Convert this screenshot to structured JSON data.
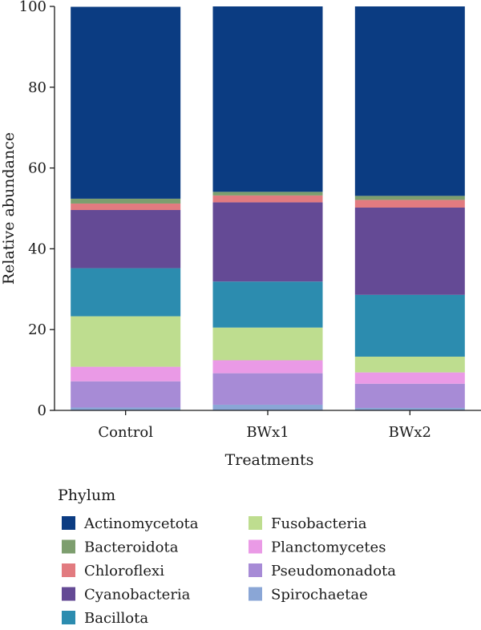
{
  "chart_data": {
    "type": "bar",
    "stacked": true,
    "title": "",
    "xlabel": "Treatments",
    "ylabel": "Relative abundance",
    "ylim": [
      0,
      100
    ],
    "yticks": [
      0,
      20,
      40,
      60,
      80,
      100
    ],
    "grid": false,
    "legend_position": "bottom",
    "legend_title": "Phylum",
    "categories": [
      "Control",
      "BWx1",
      "BWx2"
    ],
    "series": [
      {
        "name": "Spirochaetae",
        "color": "#8aa6d6",
        "values": [
          0.7,
          1.4,
          0.6
        ]
      },
      {
        "name": "Pseudomonadota",
        "color": "#a78bd6",
        "values": [
          6.5,
          7.8,
          6.0
        ]
      },
      {
        "name": "Planctomycetes",
        "color": "#ea9ae6",
        "values": [
          3.6,
          3.2,
          2.8
        ]
      },
      {
        "name": "Fusobacteria",
        "color": "#bedd8f",
        "values": [
          12.5,
          8.1,
          3.9
        ]
      },
      {
        "name": "Bacillota",
        "color": "#2c8caf",
        "values": [
          11.9,
          11.4,
          15.3
        ]
      },
      {
        "name": "Cyanobacteria",
        "color": "#644a95",
        "values": [
          14.4,
          19.6,
          21.6
        ]
      },
      {
        "name": "Chloroflexi",
        "color": "#e27b80",
        "values": [
          1.6,
          1.7,
          1.9
        ]
      },
      {
        "name": "Bacteroidota",
        "color": "#7d9e6e",
        "values": [
          1.2,
          0.9,
          1.0
        ]
      },
      {
        "name": "Actinomycetota",
        "color": "#0b3c82",
        "values": [
          47.5,
          45.9,
          46.9
        ]
      }
    ],
    "legend_order": [
      "Actinomycetota",
      "Bacteroidota",
      "Chloroflexi",
      "Cyanobacteria",
      "Bacillota",
      "Fusobacteria",
      "Planctomycetes",
      "Pseudomonadota",
      "Spirochaetae"
    ]
  }
}
